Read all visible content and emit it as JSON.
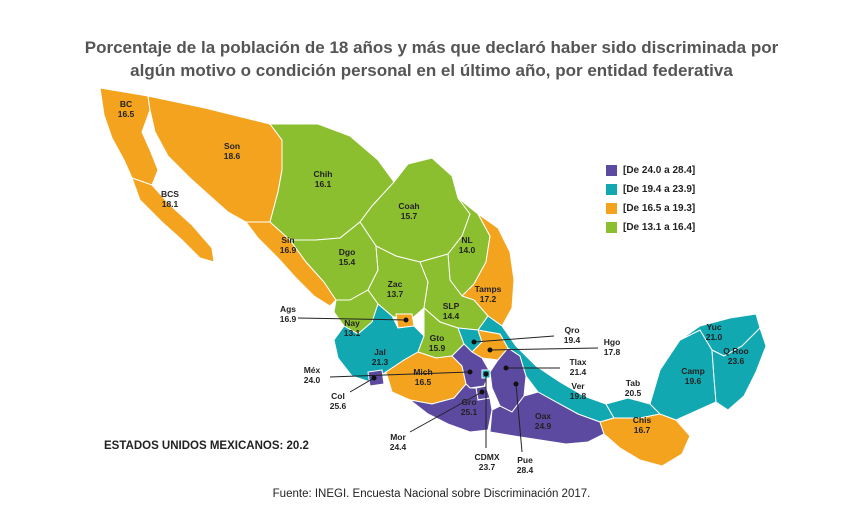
{
  "title": {
    "line1": "Porcentaje de la población de 18 años y más que declaró haber sido discriminada por",
    "line2": "algún motivo o condición personal en el último año, por entidad federativa"
  },
  "legend": [
    {
      "label": "[De 24.0 a 28.4]",
      "color": "#5b4aa0"
    },
    {
      "label": "[De 19.4 a 23.9]",
      "color": "#12a8b2"
    },
    {
      "label": "[De 16.5 a 19.3]",
      "color": "#f4a31f"
    },
    {
      "label": "[De 13.1 a 16.4]",
      "color": "#8cbf2f"
    }
  ],
  "states": [
    {
      "abbr": "BC",
      "value": "16.5"
    },
    {
      "abbr": "Son",
      "value": "18.6"
    },
    {
      "abbr": "BCS",
      "value": "18.1"
    },
    {
      "abbr": "Chih",
      "value": "16.1"
    },
    {
      "abbr": "Coah",
      "value": "15.7"
    },
    {
      "abbr": "Sin",
      "value": "16.9"
    },
    {
      "abbr": "Dgo",
      "value": "15.4"
    },
    {
      "abbr": "NL",
      "value": "14.0"
    },
    {
      "abbr": "Zac",
      "value": "13.7"
    },
    {
      "abbr": "Tamps",
      "value": "17.2"
    },
    {
      "abbr": "SLP",
      "value": "14.4"
    },
    {
      "abbr": "Ags",
      "value": "16.9"
    },
    {
      "abbr": "Nay",
      "value": "13.1"
    },
    {
      "abbr": "Gto",
      "value": "15.9"
    },
    {
      "abbr": "Qro",
      "value": "19.4"
    },
    {
      "abbr": "Hgo",
      "value": "17.8"
    },
    {
      "abbr": "Jal",
      "value": "21.3"
    },
    {
      "abbr": "Tlax",
      "value": "21.4"
    },
    {
      "abbr": "Méx",
      "value": "24.0"
    },
    {
      "abbr": "Mich",
      "value": "16.5"
    },
    {
      "abbr": "Ver",
      "value": "19.8"
    },
    {
      "abbr": "Col",
      "value": "25.6"
    },
    {
      "abbr": "Gro",
      "value": "25.1"
    },
    {
      "abbr": "Oax",
      "value": "24.9"
    },
    {
      "abbr": "Mor",
      "value": "24.4"
    },
    {
      "abbr": "CDMX",
      "value": "23.7"
    },
    {
      "abbr": "Pue",
      "value": "28.4"
    },
    {
      "abbr": "Tab",
      "value": "20.5"
    },
    {
      "abbr": "Chis",
      "value": "16.7"
    },
    {
      "abbr": "Camp",
      "value": "19.6"
    },
    {
      "abbr": "Yuc",
      "value": "21.0"
    },
    {
      "abbr": "Q Roo",
      "value": "23.6"
    }
  ],
  "national": "ESTADOS UNIDOS MEXICANOS: 20.2",
  "source": "Fuente: INEGI. Encuesta Nacional sobre Discriminación 2017."
}
